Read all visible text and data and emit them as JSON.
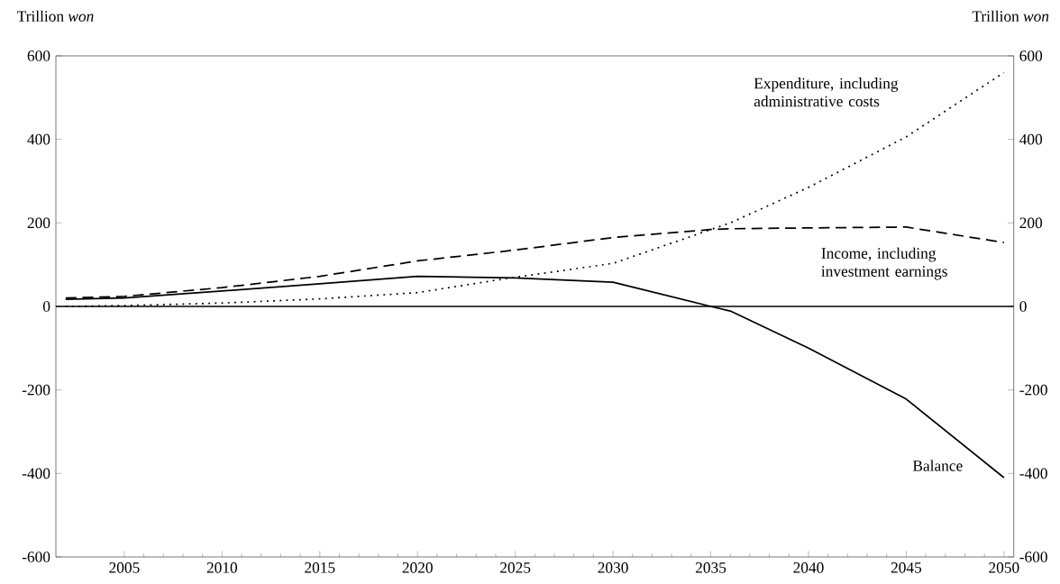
{
  "chart_data": {
    "type": "line",
    "ylabel": "Trillion *won*",
    "y2label": "Trillion *won*",
    "x": [
      2002,
      2005,
      2010,
      2015,
      2020,
      2025,
      2030,
      2035,
      2036,
      2040,
      2045,
      2050
    ],
    "series": [
      {
        "name": "Expenditure, including administrative costs",
        "color": "#000000",
        "line_style": "dotted",
        "values": [
          0,
          2,
          8,
          18,
          33,
          70,
          103,
          184,
          200,
          285,
          406,
          560
        ]
      },
      {
        "name": "Income, including investment earnings",
        "color": "#000000",
        "line_style": "dashed",
        "values": [
          20,
          24,
          45,
          72,
          109,
          135,
          165,
          184,
          186,
          188,
          190,
          153
        ]
      },
      {
        "name": "Balance",
        "color": "#000000",
        "line_style": "solid",
        "values": [
          17,
          20,
          37,
          54,
          72,
          68,
          58,
          0,
          -11,
          -100,
          -222,
          -410
        ]
      }
    ],
    "xlim": [
      2001.5,
      2050.5
    ],
    "xticks": [
      2005,
      2010,
      2015,
      2020,
      2025,
      2030,
      2035,
      2040,
      2045,
      2050
    ],
    "ylim": [
      -600,
      600
    ],
    "yticks": [
      -600,
      -400,
      -200,
      0,
      200,
      400,
      600
    ],
    "y2lim": [
      -600,
      600
    ],
    "y2ticks": [
      -600,
      -400,
      -200,
      0,
      200,
      400,
      600
    ],
    "ref_lines": [
      {
        "axis": "y",
        "value": 0,
        "color": "#000000"
      }
    ],
    "marker": "none"
  }
}
